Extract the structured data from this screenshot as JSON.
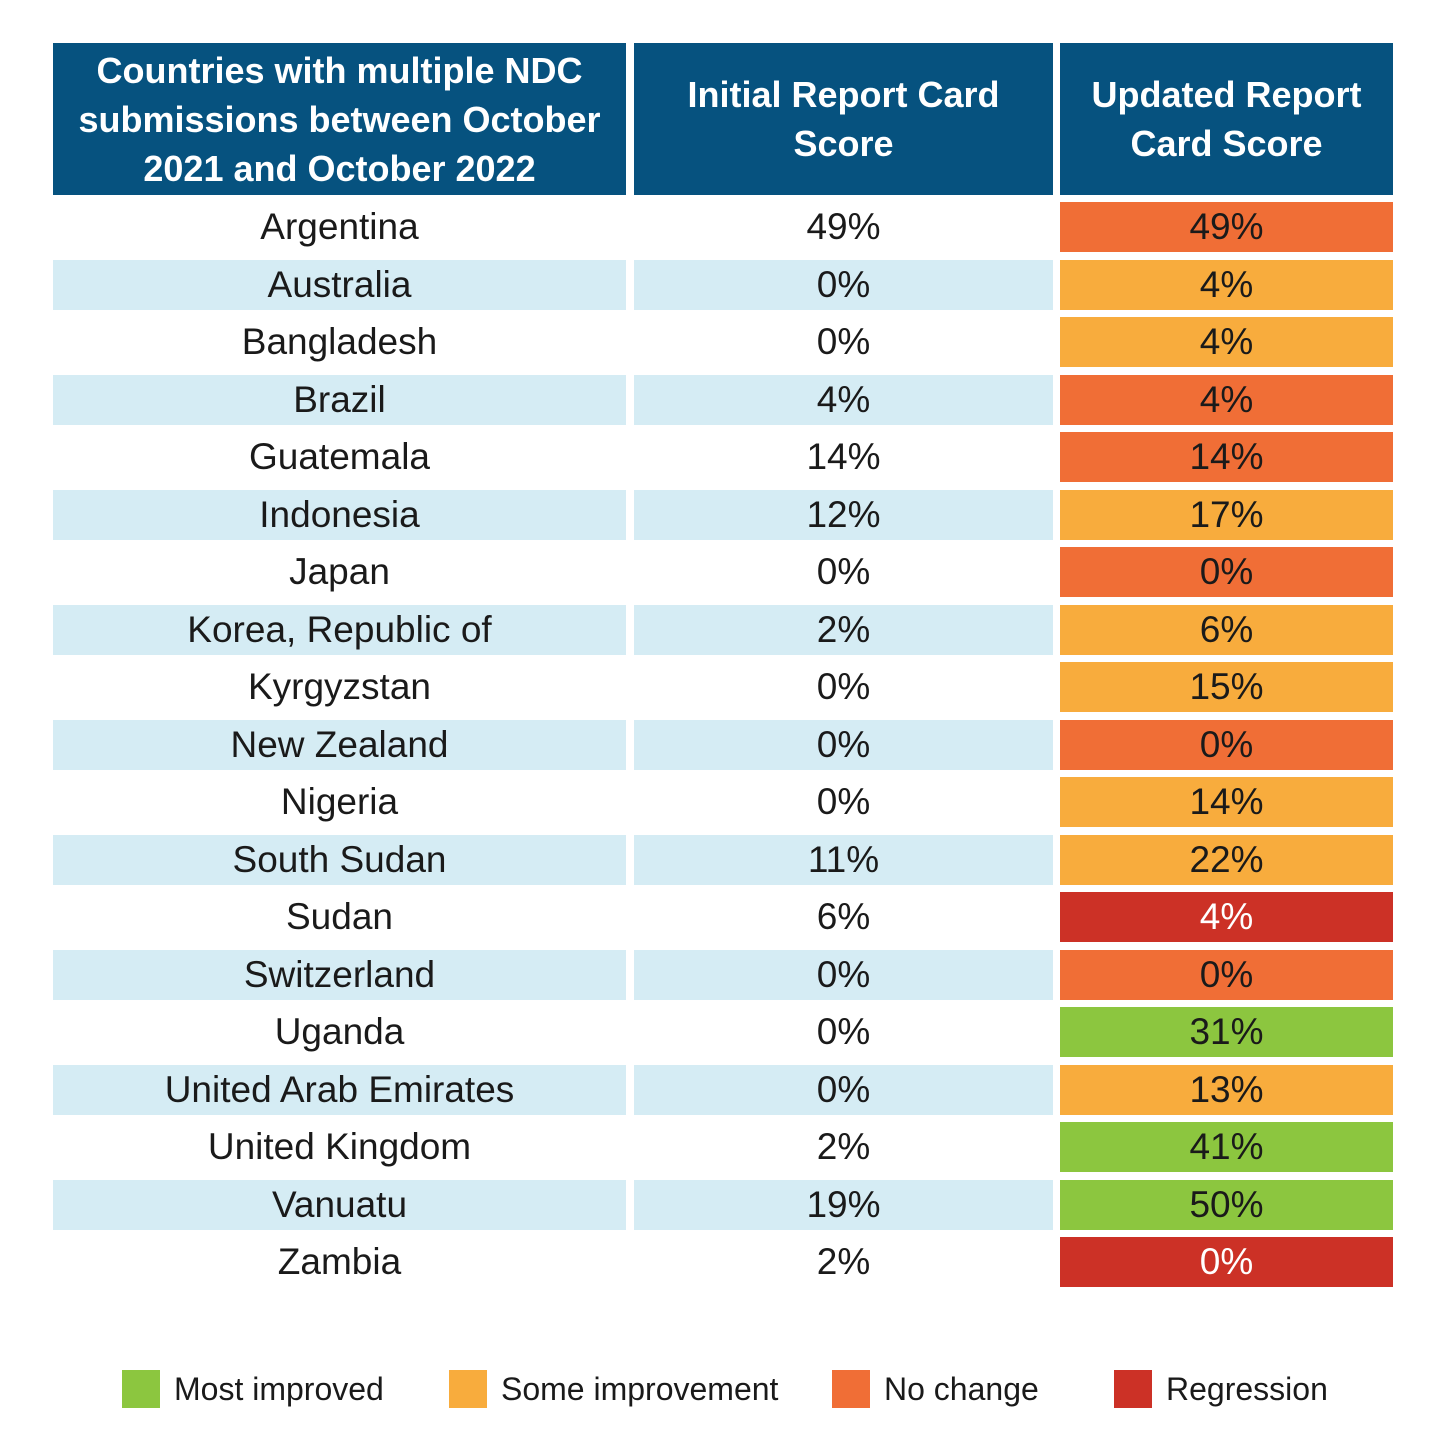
{
  "headers": {
    "country": [
      "Countries with multiple NDC",
      "submissions between October",
      "2021 and October 2022"
    ],
    "initial": [
      "Initial Report Card",
      "Score"
    ],
    "updated": [
      "Updated Report",
      "Card Score"
    ]
  },
  "colors": {
    "header_bg": "#06527f",
    "row_shade": "#d5ecf4",
    "most_improved": "#8cc63f",
    "some_improvement": "#f8ac3d",
    "no_change": "#f06e36",
    "regression": "#cc3126"
  },
  "chart_data": {
    "type": "table",
    "columns": [
      "Countries with multiple NDC submissions between October 2021 and October 2022",
      "Initial Report Card Score",
      "Updated Report Card Score"
    ],
    "rows": [
      {
        "country": "Argentina",
        "initial": "49%",
        "updated": "49%",
        "category": "no_change"
      },
      {
        "country": "Australia",
        "initial": "0%",
        "updated": "4%",
        "category": "some_improvement"
      },
      {
        "country": "Bangladesh",
        "initial": "0%",
        "updated": "4%",
        "category": "some_improvement"
      },
      {
        "country": "Brazil",
        "initial": "4%",
        "updated": "4%",
        "category": "no_change"
      },
      {
        "country": "Guatemala",
        "initial": "14%",
        "updated": "14%",
        "category": "no_change"
      },
      {
        "country": "Indonesia",
        "initial": "12%",
        "updated": "17%",
        "category": "some_improvement"
      },
      {
        "country": "Japan",
        "initial": "0%",
        "updated": "0%",
        "category": "no_change"
      },
      {
        "country": "Korea, Republic of",
        "initial": "2%",
        "updated": "6%",
        "category": "some_improvement"
      },
      {
        "country": "Kyrgyzstan",
        "initial": "0%",
        "updated": "15%",
        "category": "some_improvement"
      },
      {
        "country": "New Zealand",
        "initial": "0%",
        "updated": "0%",
        "category": "no_change"
      },
      {
        "country": "Nigeria",
        "initial": "0%",
        "updated": "14%",
        "category": "some_improvement"
      },
      {
        "country": "South Sudan",
        "initial": "11%",
        "updated": "22%",
        "category": "some_improvement"
      },
      {
        "country": "Sudan",
        "initial": "6%",
        "updated": "4%",
        "category": "regression"
      },
      {
        "country": "Switzerland",
        "initial": "0%",
        "updated": "0%",
        "category": "no_change"
      },
      {
        "country": "Uganda",
        "initial": "0%",
        "updated": "31%",
        "category": "most_improved"
      },
      {
        "country": "United Arab Emirates",
        "initial": "0%",
        "updated": "13%",
        "category": "some_improvement"
      },
      {
        "country": "United Kingdom",
        "initial": "2%",
        "updated": "41%",
        "category": "most_improved"
      },
      {
        "country": "Vanuatu",
        "initial": "19%",
        "updated": "50%",
        "category": "most_improved"
      },
      {
        "country": "Zambia",
        "initial": "2%",
        "updated": "0%",
        "category": "regression"
      }
    ],
    "legend": [
      {
        "key": "most_improved",
        "label": "Most improved"
      },
      {
        "key": "some_improvement",
        "label": "Some improvement"
      },
      {
        "key": "no_change",
        "label": "No change"
      },
      {
        "key": "regression",
        "label": "Regression"
      }
    ]
  }
}
